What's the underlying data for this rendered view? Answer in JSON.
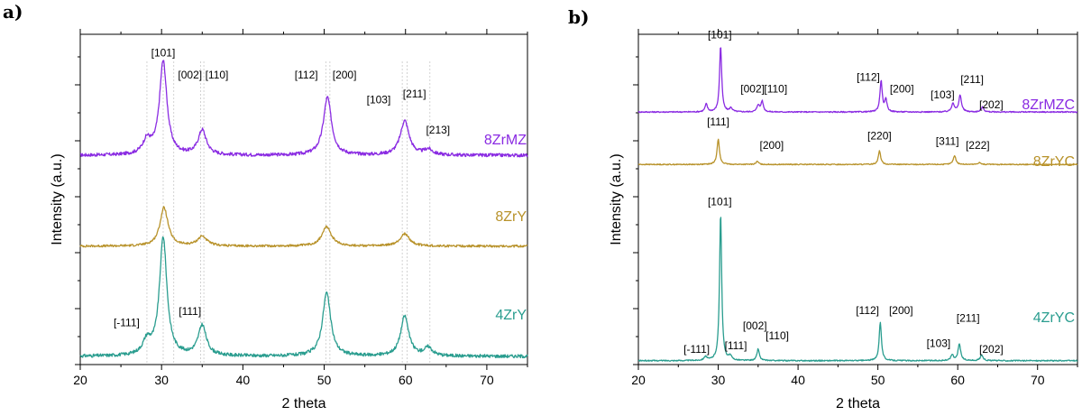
{
  "chart_data": [
    {
      "panel": "a)",
      "type": "line",
      "xlabel": "2 theta",
      "ylabel": "Intensity (a.u.)",
      "xlim": [
        20,
        75
      ],
      "ylim": [
        0,
        12
      ],
      "x_ticks": [
        20,
        30,
        40,
        50,
        60,
        70
      ],
      "reference_lines": [
        28.2,
        30.2,
        31.5,
        34.8,
        35.2,
        50.2,
        50.7,
        59.6,
        60.2,
        63.0
      ],
      "series": [
        {
          "name": "8ZrMZ",
          "color": "#8a2be2",
          "baseline": 7.6,
          "peaks": [
            [
              28.2,
              0.5,
              0.6
            ],
            [
              30.2,
              3.4,
              0.55
            ],
            [
              35.0,
              0.9,
              0.6
            ],
            [
              50.4,
              2.1,
              0.6
            ],
            [
              59.9,
              1.25,
              0.65
            ],
            [
              62.8,
              0.2,
              0.6
            ]
          ],
          "noise": 0.06,
          "annotations": [
            {
              "text": "[101]",
              "x": 30.2,
              "y": 11.2
            },
            {
              "text": "[002]",
              "x": 33.5,
              "y": 10.4
            },
            {
              "text": "[110]",
              "x": 36.8,
              "y": 10.4
            },
            {
              "text": "[112]",
              "x": 47.8,
              "y": 10.4
            },
            {
              "text": "[200]",
              "x": 52.5,
              "y": 10.4
            },
            {
              "text": "[103]",
              "x": 56.7,
              "y": 9.5
            },
            {
              "text": "[211]",
              "x": 61.1,
              "y": 9.7
            },
            {
              "text": "[213]",
              "x": 64.0,
              "y": 8.4
            }
          ]
        },
        {
          "name": "8ZrY",
          "color": "#b8922a",
          "baseline": 4.3,
          "peaks": [
            [
              30.3,
              1.4,
              0.6
            ],
            [
              35.0,
              0.35,
              0.7
            ],
            [
              50.3,
              0.7,
              0.7
            ],
            [
              59.9,
              0.45,
              0.7
            ]
          ],
          "noise": 0.04,
          "annotations": []
        },
        {
          "name": "4ZrY",
          "color": "#2a9d8f",
          "baseline": 0.3,
          "peaks": [
            [
              28.2,
              0.5,
              0.6
            ],
            [
              30.2,
              4.3,
              0.55
            ],
            [
              35.0,
              1.1,
              0.6
            ],
            [
              50.3,
              2.3,
              0.6
            ],
            [
              59.9,
              1.45,
              0.6
            ],
            [
              62.8,
              0.3,
              0.6
            ]
          ],
          "noise": 0.06,
          "annotations": [
            {
              "text": "[-111]",
              "x": 25.7,
              "y": 1.4
            },
            {
              "text": "[111]",
              "x": 33.5,
              "y": 1.8
            }
          ]
        }
      ]
    },
    {
      "panel": "b)",
      "type": "line",
      "xlabel": "2 theta",
      "ylabel": "Intensity (a.u.)",
      "xlim": [
        20,
        75
      ],
      "ylim": [
        0,
        17
      ],
      "x_ticks": [
        20,
        30,
        40,
        50,
        60,
        70
      ],
      "series": [
        {
          "name": "8ZrMZC",
          "color": "#8a2be2",
          "baseline": 13.0,
          "peaks": [
            [
              28.5,
              0.4,
              0.18
            ],
            [
              30.3,
              3.4,
              0.16
            ],
            [
              31.6,
              0.2,
              0.2
            ],
            [
              35.0,
              0.35,
              0.18
            ],
            [
              35.5,
              0.55,
              0.18
            ],
            [
              50.4,
              1.6,
              0.17
            ],
            [
              51.0,
              0.6,
              0.17
            ],
            [
              59.4,
              0.45,
              0.2
            ],
            [
              60.3,
              0.85,
              0.2
            ],
            [
              63.1,
              0.25,
              0.2
            ]
          ],
          "noise": 0.03,
          "annotations": [
            {
              "text": "[101]",
              "x": 30.2,
              "y": 16.8
            },
            {
              "text": "[002]",
              "x": 34.3,
              "y": 14.0
            },
            {
              "text": "[110]",
              "x": 37.2,
              "y": 14.0
            },
            {
              "text": "[112]",
              "x": 48.8,
              "y": 14.6
            },
            {
              "text": "[200]",
              "x": 53.0,
              "y": 14.0
            },
            {
              "text": "[103]",
              "x": 58.1,
              "y": 13.7
            },
            {
              "text": "[211]",
              "x": 61.8,
              "y": 14.5
            },
            {
              "text": "[202]",
              "x": 64.2,
              "y": 13.2
            }
          ]
        },
        {
          "name": "8ZrYC",
          "color": "#b8922a",
          "baseline": 10.3,
          "peaks": [
            [
              30.0,
              1.3,
              0.18
            ],
            [
              34.9,
              0.15,
              0.2
            ],
            [
              50.2,
              0.7,
              0.18
            ],
            [
              59.6,
              0.45,
              0.2
            ],
            [
              62.7,
              0.1,
              0.2
            ]
          ],
          "noise": 0.025,
          "annotations": [
            {
              "text": "[111]",
              "x": 30.0,
              "y": 12.3
            },
            {
              "text": "[200]",
              "x": 36.7,
              "y": 11.1
            },
            {
              "text": "[220]",
              "x": 50.2,
              "y": 11.6
            },
            {
              "text": "[311]",
              "x": 58.7,
              "y": 11.3
            },
            {
              "text": "[222]",
              "x": 62.5,
              "y": 11.1
            }
          ]
        },
        {
          "name": "4ZrYC",
          "color": "#2a9d8f",
          "baseline": 0.2,
          "peaks": [
            [
              28.4,
              0.2,
              0.2
            ],
            [
              30.3,
              7.6,
              0.16
            ],
            [
              31.5,
              0.2,
              0.2
            ],
            [
              35.0,
              0.6,
              0.18
            ],
            [
              50.3,
              2.0,
              0.17
            ],
            [
              59.3,
              0.3,
              0.2
            ],
            [
              60.2,
              0.85,
              0.2
            ],
            [
              63.0,
              0.3,
              0.2
            ]
          ],
          "noise": 0.03,
          "annotations": [
            {
              "text": "[101]",
              "x": 30.2,
              "y": 8.2
            },
            {
              "text": "[-111]",
              "x": 27.3,
              "y": 0.6
            },
            {
              "text": "[111]",
              "x": 32.2,
              "y": 0.8
            },
            {
              "text": "[002]",
              "x": 34.6,
              "y": 1.8
            },
            {
              "text": "[110]",
              "x": 37.4,
              "y": 1.3
            },
            {
              "text": "[112]",
              "x": 48.7,
              "y": 2.6
            },
            {
              "text": "[200]",
              "x": 52.9,
              "y": 2.6
            },
            {
              "text": "[211]",
              "x": 61.3,
              "y": 2.2
            },
            {
              "text": "[103]",
              "x": 57.6,
              "y": 0.9
            },
            {
              "text": "[202]",
              "x": 64.2,
              "y": 0.6
            }
          ]
        }
      ]
    }
  ]
}
